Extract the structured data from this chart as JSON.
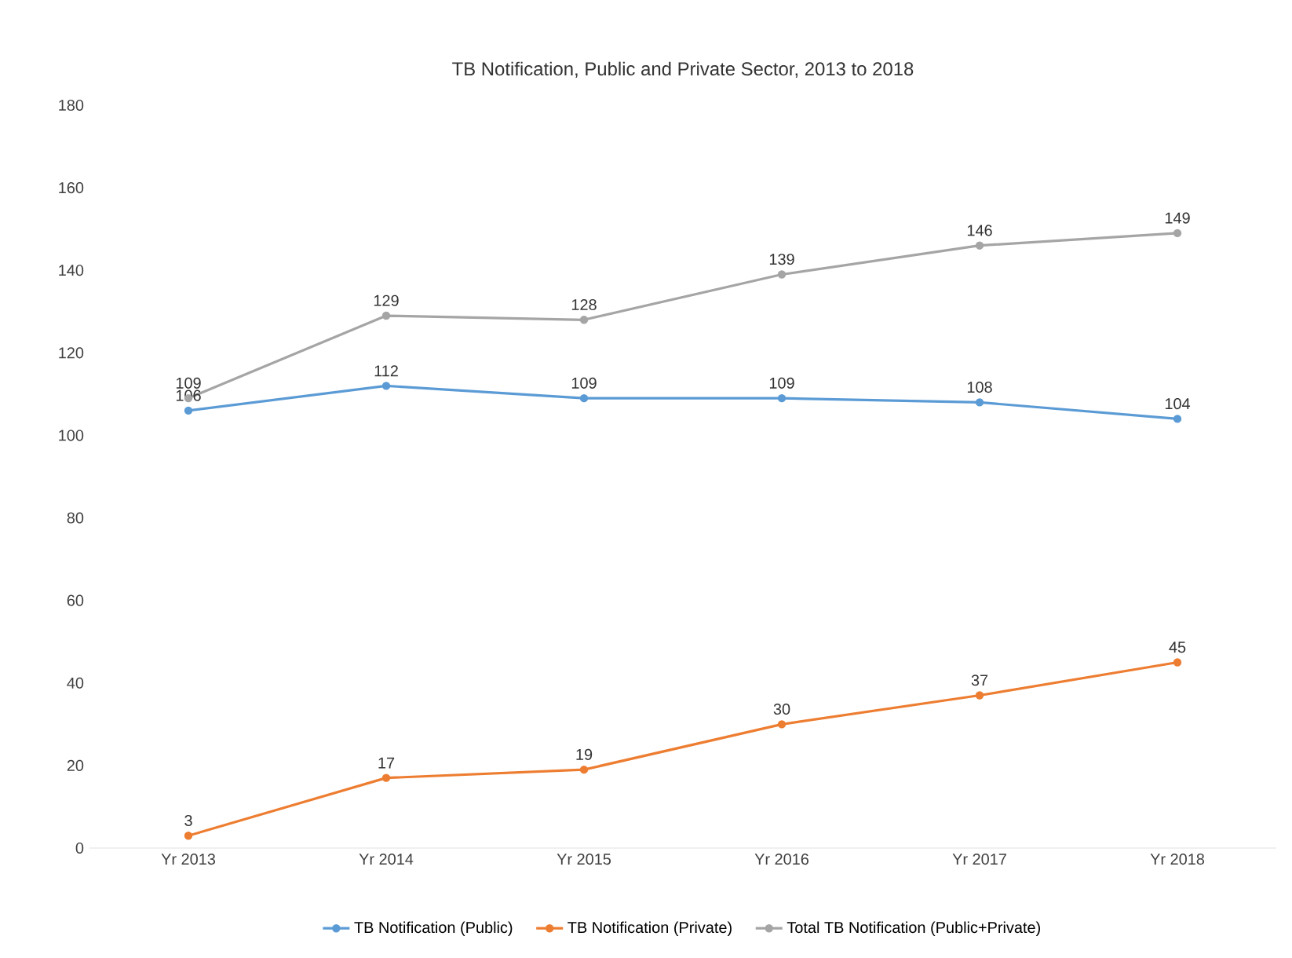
{
  "chart_data": {
    "type": "line",
    "title": "TB Notification, Public and Private Sector, 2013 to 2018",
    "categories": [
      "Yr 2013",
      "Yr 2014",
      "Yr 2015",
      "Yr 2016",
      "Yr 2017",
      "Yr 2018"
    ],
    "series": [
      {
        "name": "TB Notification (Public)",
        "color": "#5b9bd5",
        "values": [
          106,
          112,
          109,
          109,
          108,
          104
        ]
      },
      {
        "name": "TB Notification (Private)",
        "color": "#ed7d31",
        "values": [
          3,
          17,
          19,
          30,
          37,
          45
        ]
      },
      {
        "name": "Total TB Notification (Public+Private)",
        "color": "#a5a5a5",
        "values": [
          109,
          129,
          128,
          139,
          146,
          149
        ]
      }
    ],
    "ylim": [
      0,
      180
    ],
    "yticks": [
      0,
      20,
      40,
      60,
      80,
      100,
      120,
      140,
      160,
      180
    ],
    "grid": false,
    "legend": "bottom",
    "marker": "circle",
    "line_style": "solid",
    "data_labels": true
  }
}
